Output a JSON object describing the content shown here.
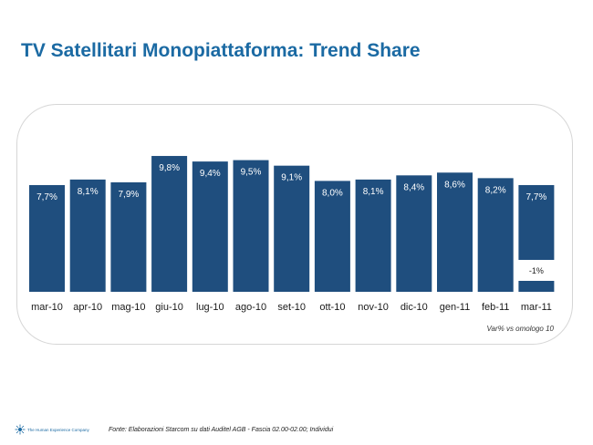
{
  "title": "TV Satellitari Monopiattaforma: Trend Share",
  "chart_data": {
    "type": "bar",
    "categories": [
      "mar-10",
      "apr-10",
      "mag-10",
      "giu-10",
      "lug-10",
      "ago-10",
      "set-10",
      "ott-10",
      "nov-10",
      "dic-10",
      "gen-11",
      "feb-11",
      "mar-11"
    ],
    "values": [
      7.7,
      8.1,
      7.9,
      9.8,
      9.4,
      9.5,
      9.1,
      8.0,
      8.1,
      8.4,
      8.6,
      8.2,
      7.7
    ],
    "data_labels": [
      "7,7%",
      "8,1%",
      "7,9%",
      "9,8%",
      "9,4%",
      "9,5%",
      "9,1%",
      "8,0%",
      "8,1%",
      "8,4%",
      "8,6%",
      "8,2%",
      "7,7%"
    ],
    "annotations": [
      {
        "category": "mar-11",
        "text": "-1%"
      }
    ],
    "note": "Var% vs omologo 10",
    "bar_color": "#1f4e7e"
  },
  "footer": {
    "brand": "The Human Experience Company",
    "source": "Fonte: Elaborazioni Starcom su dati Auditel AGB - Fascia 02.00-02.00; Individui"
  },
  "colors": {
    "title": "#1b6aa3",
    "bar": "#1f4e7e"
  }
}
